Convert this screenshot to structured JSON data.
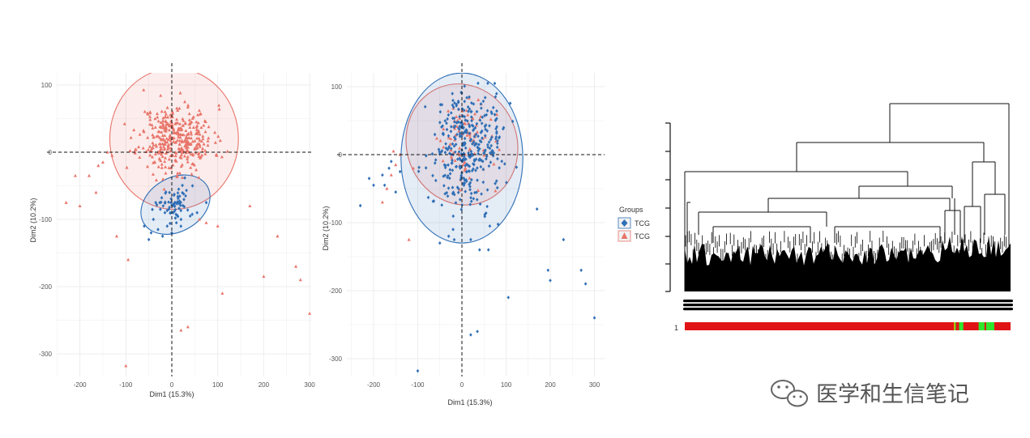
{
  "chart_data": [
    {
      "type": "scatter",
      "xlabel": "Dim1 (15.3%)",
      "ylabel": "Dim2 (10.2%)",
      "xlim": [
        -250,
        305
      ],
      "ylim": [
        -335,
        110
      ],
      "x_ticks": [
        -200,
        -100,
        0,
        100,
        200,
        300
      ],
      "x_tick_labels": [
        "-200",
        "-100",
        "0",
        "100",
        "200",
        "300"
      ],
      "y_ticks": [
        100,
        0,
        -100,
        -200,
        -300
      ],
      "y_tick_labels": [
        "100",
        "0",
        "-100",
        "-200",
        "-300"
      ],
      "grid": true,
      "reference_lines": {
        "x": 0,
        "y": 0,
        "style": "dashed"
      },
      "series": [
        {
          "color": "#e8756a",
          "marker": "triangle",
          "ellipse": {
            "cx": 5,
            "cy": 20,
            "rx": 140,
            "ry": 105
          },
          "cluster": {
            "cx": 10,
            "cy": 20,
            "sx": 40,
            "sy": 25,
            "n": 380
          },
          "points": [
            [
              -230,
              -75
            ],
            [
              -200,
              -80
            ],
            [
              -210,
              -35
            ],
            [
              -180,
              -35
            ],
            [
              -150,
              -15
            ],
            [
              -130,
              -5
            ],
            [
              -120,
              -125
            ],
            [
              -100,
              -318
            ],
            [
              -95,
              -160
            ],
            [
              60,
              -100
            ],
            [
              75,
              -105
            ],
            [
              100,
              -110
            ],
            [
              170,
              -80
            ],
            [
              200,
              -185
            ],
            [
              230,
              -125
            ],
            [
              270,
              -170
            ],
            [
              280,
              -190
            ],
            [
              300,
              -240
            ],
            [
              20,
              -265
            ],
            [
              35,
              -260
            ],
            [
              110,
              -210
            ],
            [
              -160,
              -20
            ],
            [
              -140,
              0
            ],
            [
              -165,
              -60
            ]
          ]
        },
        {
          "color": "#2f6fb6",
          "marker": "diamond",
          "ellipse": {
            "cx": 8,
            "cy": -78,
            "rx": 80,
            "ry": 40,
            "angle": -30
          },
          "cluster": {
            "cx": 5,
            "cy": -75,
            "sx": 18,
            "sy": 14,
            "n": 60
          },
          "points": [
            [
              -50,
              -130
            ],
            [
              -45,
              -120
            ],
            [
              -30,
              -115
            ],
            [
              -20,
              -125
            ],
            [
              -10,
              -110
            ],
            [
              20,
              -100
            ],
            [
              40,
              -95
            ],
            [
              55,
              -90
            ],
            [
              75,
              -75
            ],
            [
              -40,
              -100
            ],
            [
              -25,
              -85
            ],
            [
              -5,
              -60
            ],
            [
              15,
              -55
            ],
            [
              30,
              -65
            ],
            [
              45,
              -50
            ],
            [
              -35,
              -75
            ],
            [
              -15,
              -90
            ],
            [
              0,
              -120
            ],
            [
              10,
              -105
            ],
            [
              -60,
              -110
            ]
          ]
        }
      ]
    },
    {
      "type": "scatter",
      "xlabel": "Dim1 (15.3%)",
      "ylabel": "Dim2 (10.2%)",
      "xlim": [
        -250,
        305
      ],
      "ylim": [
        -335,
        110
      ],
      "x_ticks": [
        -200,
        -100,
        0,
        100,
        200,
        300
      ],
      "x_tick_labels": [
        "-200",
        "-100",
        "0",
        "100",
        "200",
        "300"
      ],
      "y_ticks": [
        100,
        0,
        -100,
        -200,
        -300
      ],
      "y_tick_labels": [
        "100",
        "0",
        "-100",
        "-200",
        "-300"
      ],
      "grid": true,
      "reference_lines": {
        "x": 0,
        "y": 0,
        "style": "dashed"
      },
      "series": [
        {
          "color": "#e8756a",
          "marker": "triangle",
          "ellipse": {
            "cx": 0,
            "cy": 15,
            "rx": 125,
            "ry": 90,
            "angle": -20
          },
          "cluster": {
            "cx": 5,
            "cy": 25,
            "sx": 30,
            "sy": 30,
            "n": 90
          },
          "points": [
            [
              -160,
              -30
            ],
            [
              -150,
              -15
            ],
            [
              -170,
              -50
            ],
            [
              -180,
              -70
            ],
            [
              -120,
              -125
            ],
            [
              -140,
              0
            ],
            [
              -155,
              5
            ],
            [
              -110,
              -20
            ]
          ]
        },
        {
          "color": "#2f6fb6",
          "marker": "diamond",
          "ellipse": {
            "cx": 0,
            "cy": -5,
            "rx": 138,
            "ry": 125
          },
          "cluster": {
            "cx": 10,
            "cy": 10,
            "sx": 40,
            "sy": 45,
            "n": 360
          },
          "points": [
            [
              -230,
              -75
            ],
            [
              -210,
              -35
            ],
            [
              -200,
              -45
            ],
            [
              -180,
              -30
            ],
            [
              -165,
              -20
            ],
            [
              -175,
              -45
            ],
            [
              -160,
              -10
            ],
            [
              -140,
              -25
            ],
            [
              -150,
              -55
            ],
            [
              -100,
              -318
            ],
            [
              -30,
              -120
            ],
            [
              -50,
              -130
            ],
            [
              -20,
              -110
            ],
            [
              20,
              -125
            ],
            [
              40,
              -140
            ],
            [
              60,
              -140
            ],
            [
              105,
              -210
            ],
            [
              170,
              -80
            ],
            [
              200,
              -185
            ],
            [
              230,
              -125
            ],
            [
              270,
              -170
            ],
            [
              280,
              -190
            ],
            [
              300,
              -240
            ],
            [
              20,
              -265
            ],
            [
              35,
              -260
            ],
            [
              195,
              -170
            ]
          ]
        }
      ]
    }
  ],
  "legend": {
    "title": "Groups",
    "items": [
      "TCG",
      "TCG"
    ],
    "colors": [
      "#2f6fb6",
      "#e8756a"
    ],
    "markers": [
      "diamond",
      "triangle"
    ]
  },
  "dendrogram": {
    "row_label": "1",
    "color_bar": {
      "base": "#e01414",
      "highlight": "#2ee62e",
      "divider": "#e6b800"
    },
    "highlight_fractions": [
      [
        0.828,
        0.832
      ],
      [
        0.842,
        0.855
      ],
      [
        0.902,
        0.92
      ],
      [
        0.925,
        0.95
      ]
    ]
  },
  "watermark": {
    "text": "医学和生信笔记",
    "icon": "wechat-icon"
  }
}
